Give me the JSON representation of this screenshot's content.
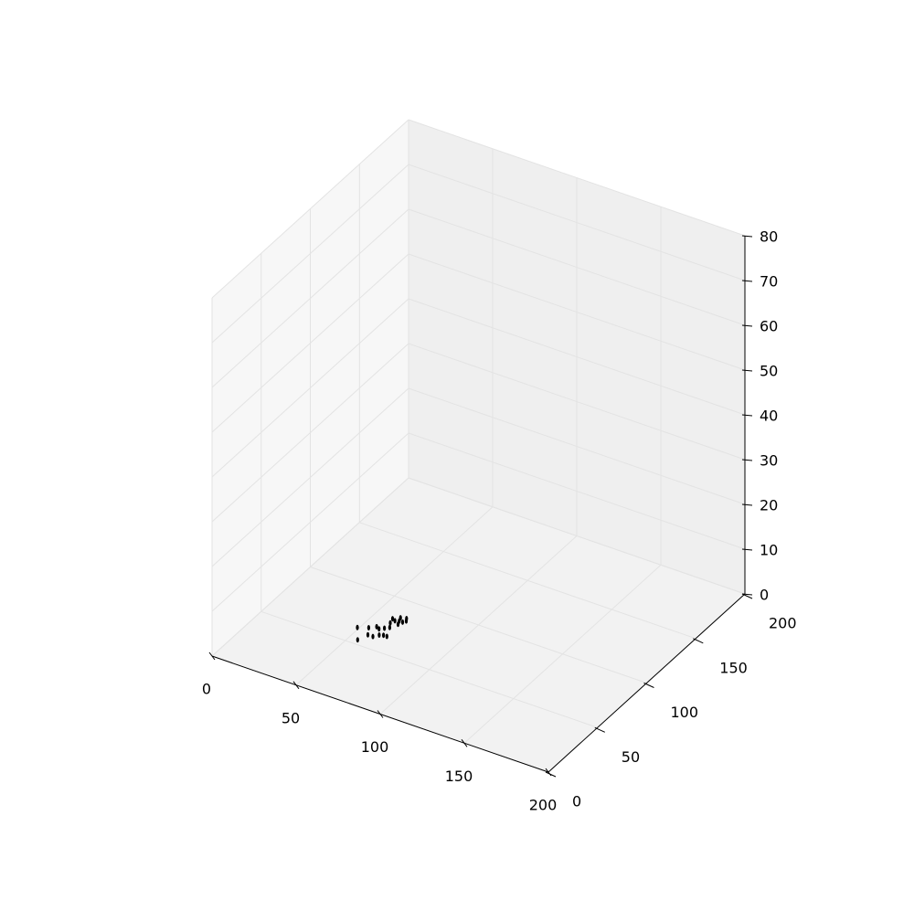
{
  "chart_data": {
    "type": "scatter",
    "projection": "3d",
    "title": "",
    "xlabel": "",
    "ylabel": "",
    "zlabel": "",
    "grid": true,
    "marker": "ellipse",
    "marker_color": "#000000",
    "pane_colors": {
      "floor": "#f2f2f2",
      "left_wall": "#f7f7f7",
      "back_wall": "#efefef",
      "grid": "#e3e3e3"
    },
    "xlim": [
      0,
      200
    ],
    "ylim": [
      0,
      200
    ],
    "zlim": [
      0,
      80
    ],
    "x_ticks": [
      "0",
      "50",
      "100",
      "150",
      "200"
    ],
    "y_ticks": [
      "0",
      "50",
      "100",
      "150",
      "200"
    ],
    "z_ticks": [
      "0",
      "10",
      "20",
      "30",
      "40",
      "50",
      "60",
      "70",
      "80"
    ],
    "points": [
      {
        "x": 55,
        "y": 54,
        "z": 0
      },
      {
        "x": 60,
        "y": 61,
        "z": 0
      },
      {
        "x": 57,
        "y": 61,
        "z": 0
      },
      {
        "x": 62,
        "y": 64,
        "z": 0
      },
      {
        "x": 64,
        "y": 65,
        "z": 0
      },
      {
        "x": 66,
        "y": 65,
        "z": 0
      },
      {
        "x": 57,
        "y": 70,
        "z": 0
      },
      {
        "x": 59,
        "y": 69,
        "z": 0
      },
      {
        "x": 54,
        "y": 67,
        "z": 0
      },
      {
        "x": 61,
        "y": 71,
        "z": 0
      },
      {
        "x": 63,
        "y": 73,
        "z": 0
      },
      {
        "x": 61,
        "y": 77,
        "z": 0
      },
      {
        "x": 64,
        "y": 81,
        "z": 0
      },
      {
        "x": 62,
        "y": 80,
        "z": 0
      },
      {
        "x": 66,
        "y": 81,
        "z": 0
      },
      {
        "x": 60,
        "y": 81,
        "z": 0
      },
      {
        "x": 63,
        "y": 84,
        "z": 0
      },
      {
        "x": 66,
        "y": 85,
        "z": 0
      },
      {
        "x": 67,
        "y": 83,
        "z": 0
      },
      {
        "x": 65,
        "y": 78,
        "z": 0
      },
      {
        "x": 49,
        "y": 64,
        "z": 0
      }
    ]
  }
}
